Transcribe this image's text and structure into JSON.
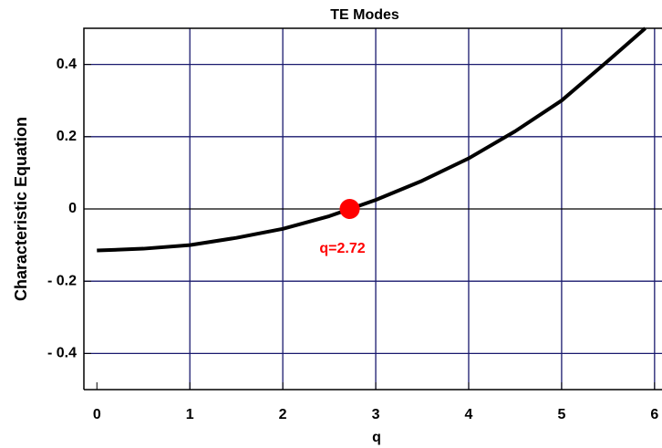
{
  "chart_data": {
    "type": "line",
    "title": "TE Modes",
    "xlabel": "q",
    "ylabel": "Characteristic Equation",
    "series": [
      {
        "name": "Characteristic Equation",
        "color": "#000000",
        "x": [
          0,
          0.5,
          1,
          1.5,
          2,
          2.5,
          3,
          3.5,
          4,
          4.5,
          5,
          5.5,
          5.9
        ],
        "values": [
          -0.115,
          -0.11,
          -0.1,
          -0.08,
          -0.055,
          -0.02,
          0.025,
          0.078,
          0.14,
          0.215,
          0.3,
          0.41,
          0.5
        ]
      }
    ],
    "marker": {
      "x": 2.72,
      "y": 0,
      "color": "#ff0000",
      "label": "q=2.72"
    },
    "xlim": [
      -0.14,
      6.08
    ],
    "ylim": [
      -0.5,
      0.5
    ],
    "xticks": [
      0,
      1,
      2,
      3,
      4,
      5,
      6
    ],
    "yticks": [
      {
        "value": -0.4,
        "label": "- 0.4"
      },
      {
        "value": -0.2,
        "label": "- 0.2"
      },
      0,
      0.2,
      0.4
    ],
    "grid": true,
    "grid_color": "#1a1a6e"
  }
}
